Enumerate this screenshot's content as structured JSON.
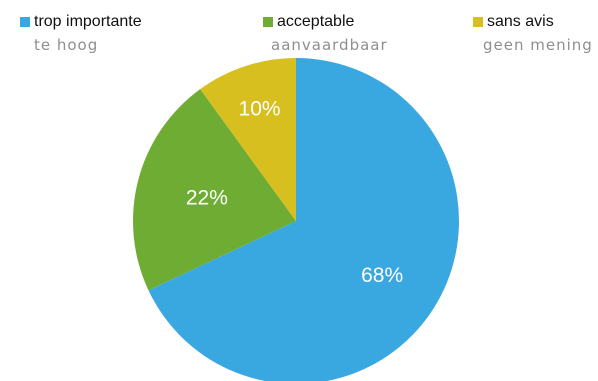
{
  "chart_data": {
    "type": "pie",
    "categories": [
      "trop importante",
      "acceptable",
      "sans avis"
    ],
    "subtitles": [
      "te hoog",
      "aanvaardbaar",
      "geen mening"
    ],
    "values": [
      68,
      22,
      10
    ],
    "labels": [
      "68%",
      "22%",
      "10%"
    ],
    "colors": [
      "#3aa8e0",
      "#6fac34",
      "#d6bf1f"
    ],
    "legend_position": "top"
  }
}
